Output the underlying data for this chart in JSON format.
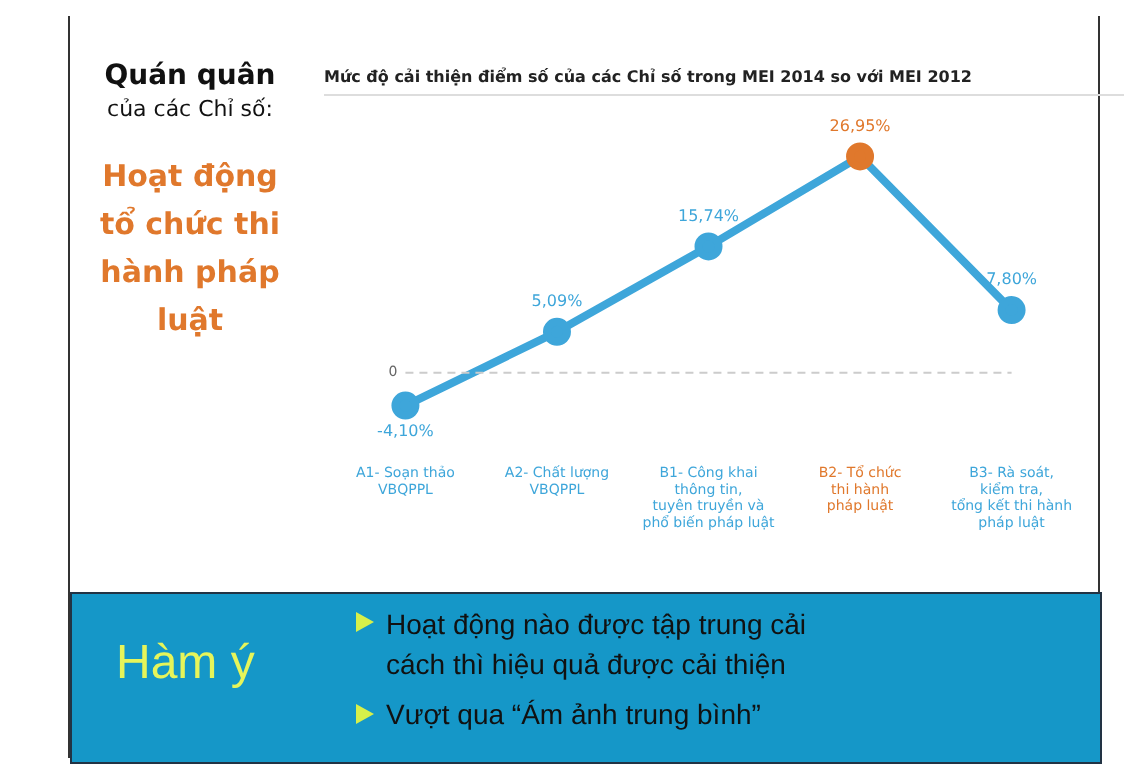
{
  "chart_data": {
    "type": "line",
    "title": "Mức độ cải thiện điểm số của các Chỉ số trong MEI 2014 so với MEI 2012",
    "categories": [
      "A1- Soạn thảo\nVBQPPL",
      "A2- Chất lượng\nVBQPPL",
      "B1- Công khai\nthông tin,\ntuyên truyền và\nphổ biến pháp luật",
      "B2- Tổ chức\nthi hành\npháp luật",
      "B3- Rà soát,\nkiểm tra,\ntổng kết thi hành\npháp luật"
    ],
    "series": [
      {
        "color": "#3ea6da",
        "colors": [
          "#3ea6da",
          "#3ea6da",
          "#3ea6da",
          "#e0782c",
          "#3ea6da"
        ],
        "values": [
          -4.1,
          5.09,
          15.74,
          26.95,
          7.8
        ],
        "value_labels": [
          "-4,10%",
          "5,09%",
          "15,74%",
          "26,95%",
          "7,80%"
        ]
      }
    ],
    "ref_lines": [
      {
        "axis": "y",
        "value": 0,
        "label": "0",
        "color": "#cccccc",
        "line_style": "dashed"
      }
    ],
    "marker": "circle",
    "line_style": "solid",
    "grid": false,
    "legend": false,
    "annotations": [
      "Quán quân",
      "của các Chỉ số:",
      "Hoạt động tổ chức thi hành pháp luật",
      "Hàm ý",
      "Hoạt động nào được tập trung cải cách thì hiệu quả được cải thiện",
      "Vượt qua “Ám ảnh trung bình”"
    ]
  }
}
